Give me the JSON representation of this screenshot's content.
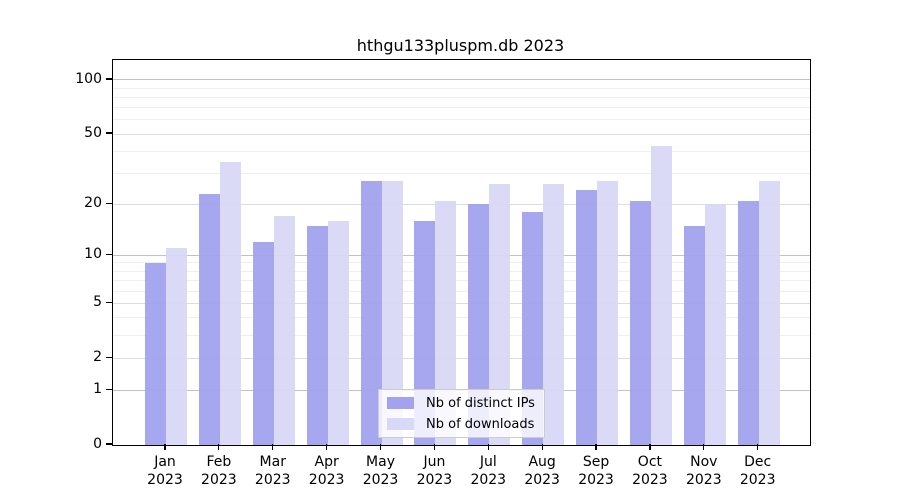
{
  "chart_data": {
    "type": "bar",
    "title": "hthgu133pluspm.db 2023",
    "scale": "log1p",
    "categories": [
      "Jan",
      "Feb",
      "Mar",
      "Apr",
      "May",
      "Jun",
      "Jul",
      "Aug",
      "Sep",
      "Oct",
      "Nov",
      "Dec"
    ],
    "year_label": "2023",
    "series": [
      {
        "name": "Nb of distinct IPs",
        "color": "#a2a2ee",
        "values": [
          9,
          23,
          12,
          15,
          27,
          16,
          20,
          18,
          24,
          21,
          15,
          21
        ]
      },
      {
        "name": "Nb of downloads",
        "color": "#d8d8f7",
        "values": [
          11,
          35,
          17,
          16,
          27,
          21,
          26,
          26,
          27,
          43,
          20,
          27
        ]
      }
    ],
    "ylim": [
      0,
      129
    ],
    "yticks": [
      100,
      50,
      20,
      10,
      5,
      2,
      1,
      0
    ],
    "major_gridlines": [
      1,
      10,
      100
    ],
    "mid_gridlines": [
      2,
      5,
      20,
      50
    ],
    "minor_gridlines": [
      3,
      4,
      6,
      7,
      8,
      9,
      30,
      40,
      60,
      70,
      80,
      90
    ],
    "grid": true,
    "legend_position": "bottom-center",
    "xlabel": "",
    "ylabel": ""
  },
  "colors": {
    "major_grid": "#c2c2c2",
    "mid_grid": "#dddddd",
    "minor_grid": "#eeeeee",
    "spine": "#000000",
    "legend_border": "#cccccc"
  }
}
